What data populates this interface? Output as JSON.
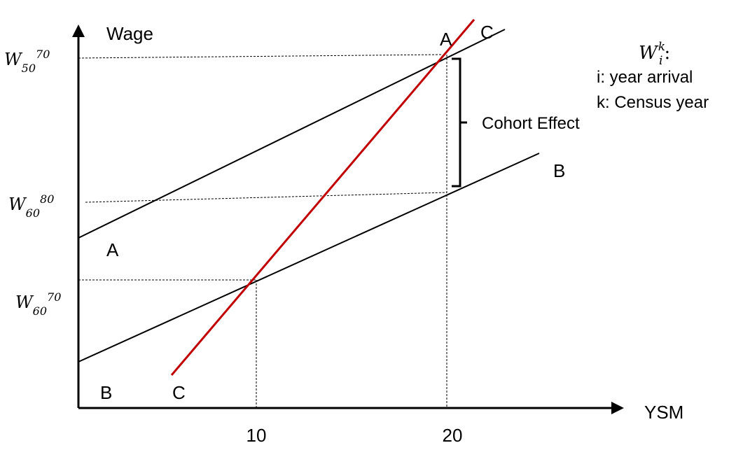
{
  "axes": {
    "y_label": "Wage",
    "x_label": "YSM",
    "x_ticks": [
      "10",
      "20"
    ]
  },
  "wage_labels": [
    {
      "base": "W",
      "sub": "50",
      "sup": "70"
    },
    {
      "base": "W",
      "sub": "60",
      "sup": "80"
    },
    {
      "base": "W",
      "sub": "60",
      "sup": "70"
    }
  ],
  "lines": {
    "A": {
      "start_label": "A",
      "end_label": "A",
      "color": "#000000"
    },
    "B": {
      "start_label": "B",
      "end_label": "B",
      "color": "#000000"
    },
    "C": {
      "start_label": "C",
      "end_label": "C",
      "color": "#c00000"
    }
  },
  "bracket": {
    "label": "Cohort Effect"
  },
  "legend": {
    "symbol_base": "W",
    "symbol_sub": "i",
    "symbol_sup": "k",
    "symbol_suffix": ":",
    "line1": "i: year arrival",
    "line2": "k: Census year"
  }
}
